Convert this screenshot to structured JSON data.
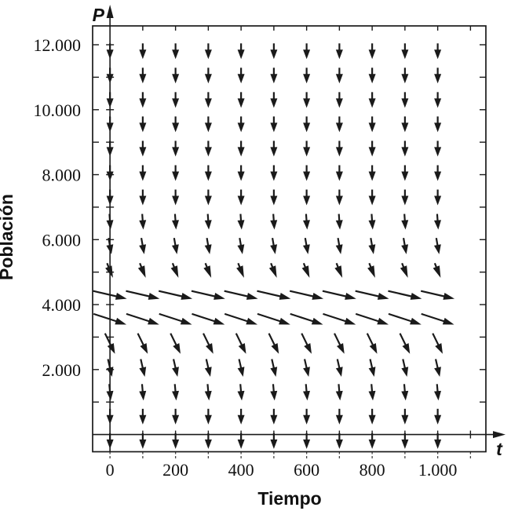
{
  "figure": {
    "background": "#ffffff",
    "ink": "#1a1a1a",
    "minor_tick_color": "#444444"
  },
  "chart_data": {
    "type": "quiver",
    "title": "",
    "xlabel": "Tiempo",
    "ylabel": "Población",
    "x_symbol": "t",
    "y_symbol": "P",
    "x_tick_labels": [
      "0",
      "200",
      "400",
      "600",
      "800",
      "1.000"
    ],
    "x_tick_values": [
      0,
      200,
      400,
      600,
      800,
      1000
    ],
    "x_minor_tick_step": 100,
    "x_minor_tick_range": [
      0,
      1100
    ],
    "y_tick_labels": [
      "2.000",
      "4.000",
      "6.000",
      "8.000",
      "10.000",
      "12.000"
    ],
    "y_tick_values": [
      2000,
      4000,
      6000,
      8000,
      10000,
      12000
    ],
    "y_minor_tick_step": 1000,
    "y_minor_tick_range": [
      1000,
      12000
    ],
    "xlim": [
      -53,
      1147
    ],
    "ylim": [
      -530,
      12580
    ],
    "grid": false,
    "legend": null,
    "field": {
      "t_values": [
        0,
        100,
        200,
        300,
        400,
        500,
        600,
        700,
        800,
        900,
        1000
      ],
      "rows": [
        {
          "P": 11800,
          "angle_deg": -90,
          "length": 20
        },
        {
          "P": 11050,
          "angle_deg": -90,
          "length": 20
        },
        {
          "P": 10300,
          "angle_deg": -90,
          "length": 20
        },
        {
          "P": 9550,
          "angle_deg": -90,
          "length": 20
        },
        {
          "P": 8800,
          "angle_deg": -90,
          "length": 20
        },
        {
          "P": 8050,
          "angle_deg": -90,
          "length": 20
        },
        {
          "P": 7300,
          "angle_deg": -90,
          "length": 20
        },
        {
          "P": 6550,
          "angle_deg": -86,
          "length": 20
        },
        {
          "P": 5800,
          "angle_deg": -80,
          "length": 21
        },
        {
          "P": 5050,
          "angle_deg": -68,
          "length": 20
        },
        {
          "P": 4300,
          "angle_deg": -13,
          "length": 44
        },
        {
          "P": 3550,
          "angle_deg": -18,
          "length": 44
        },
        {
          "P": 2800,
          "angle_deg": -64,
          "length": 29
        },
        {
          "P": 2050,
          "angle_deg": -77,
          "length": 23
        },
        {
          "P": 1300,
          "angle_deg": -85,
          "length": 21
        },
        {
          "P": 550,
          "angle_deg": -90,
          "length": 20
        },
        {
          "P": -200,
          "angle_deg": -90,
          "length": 20
        }
      ],
      "behavior": "arrows point downward for P away from 4000; nearly horizontal (slightly downward, rightward) near P between 3550 and 4300"
    }
  }
}
